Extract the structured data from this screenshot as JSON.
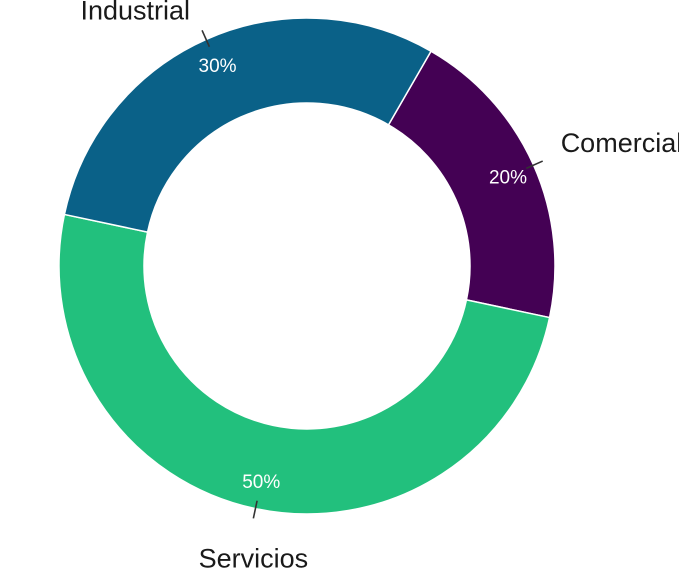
{
  "chart_data": {
    "type": "pie",
    "variant": "donut",
    "title": "",
    "legend": "none",
    "categories": [
      "Comercial",
      "Servicios",
      "Industrial"
    ],
    "values": [
      20,
      50,
      30
    ],
    "value_labels": [
      "20%",
      "50%",
      "30%"
    ],
    "colors": [
      "#440154",
      "#22c07d",
      "#0a6188"
    ],
    "start_angle_degrees_clockwise_from_top": 30
  }
}
